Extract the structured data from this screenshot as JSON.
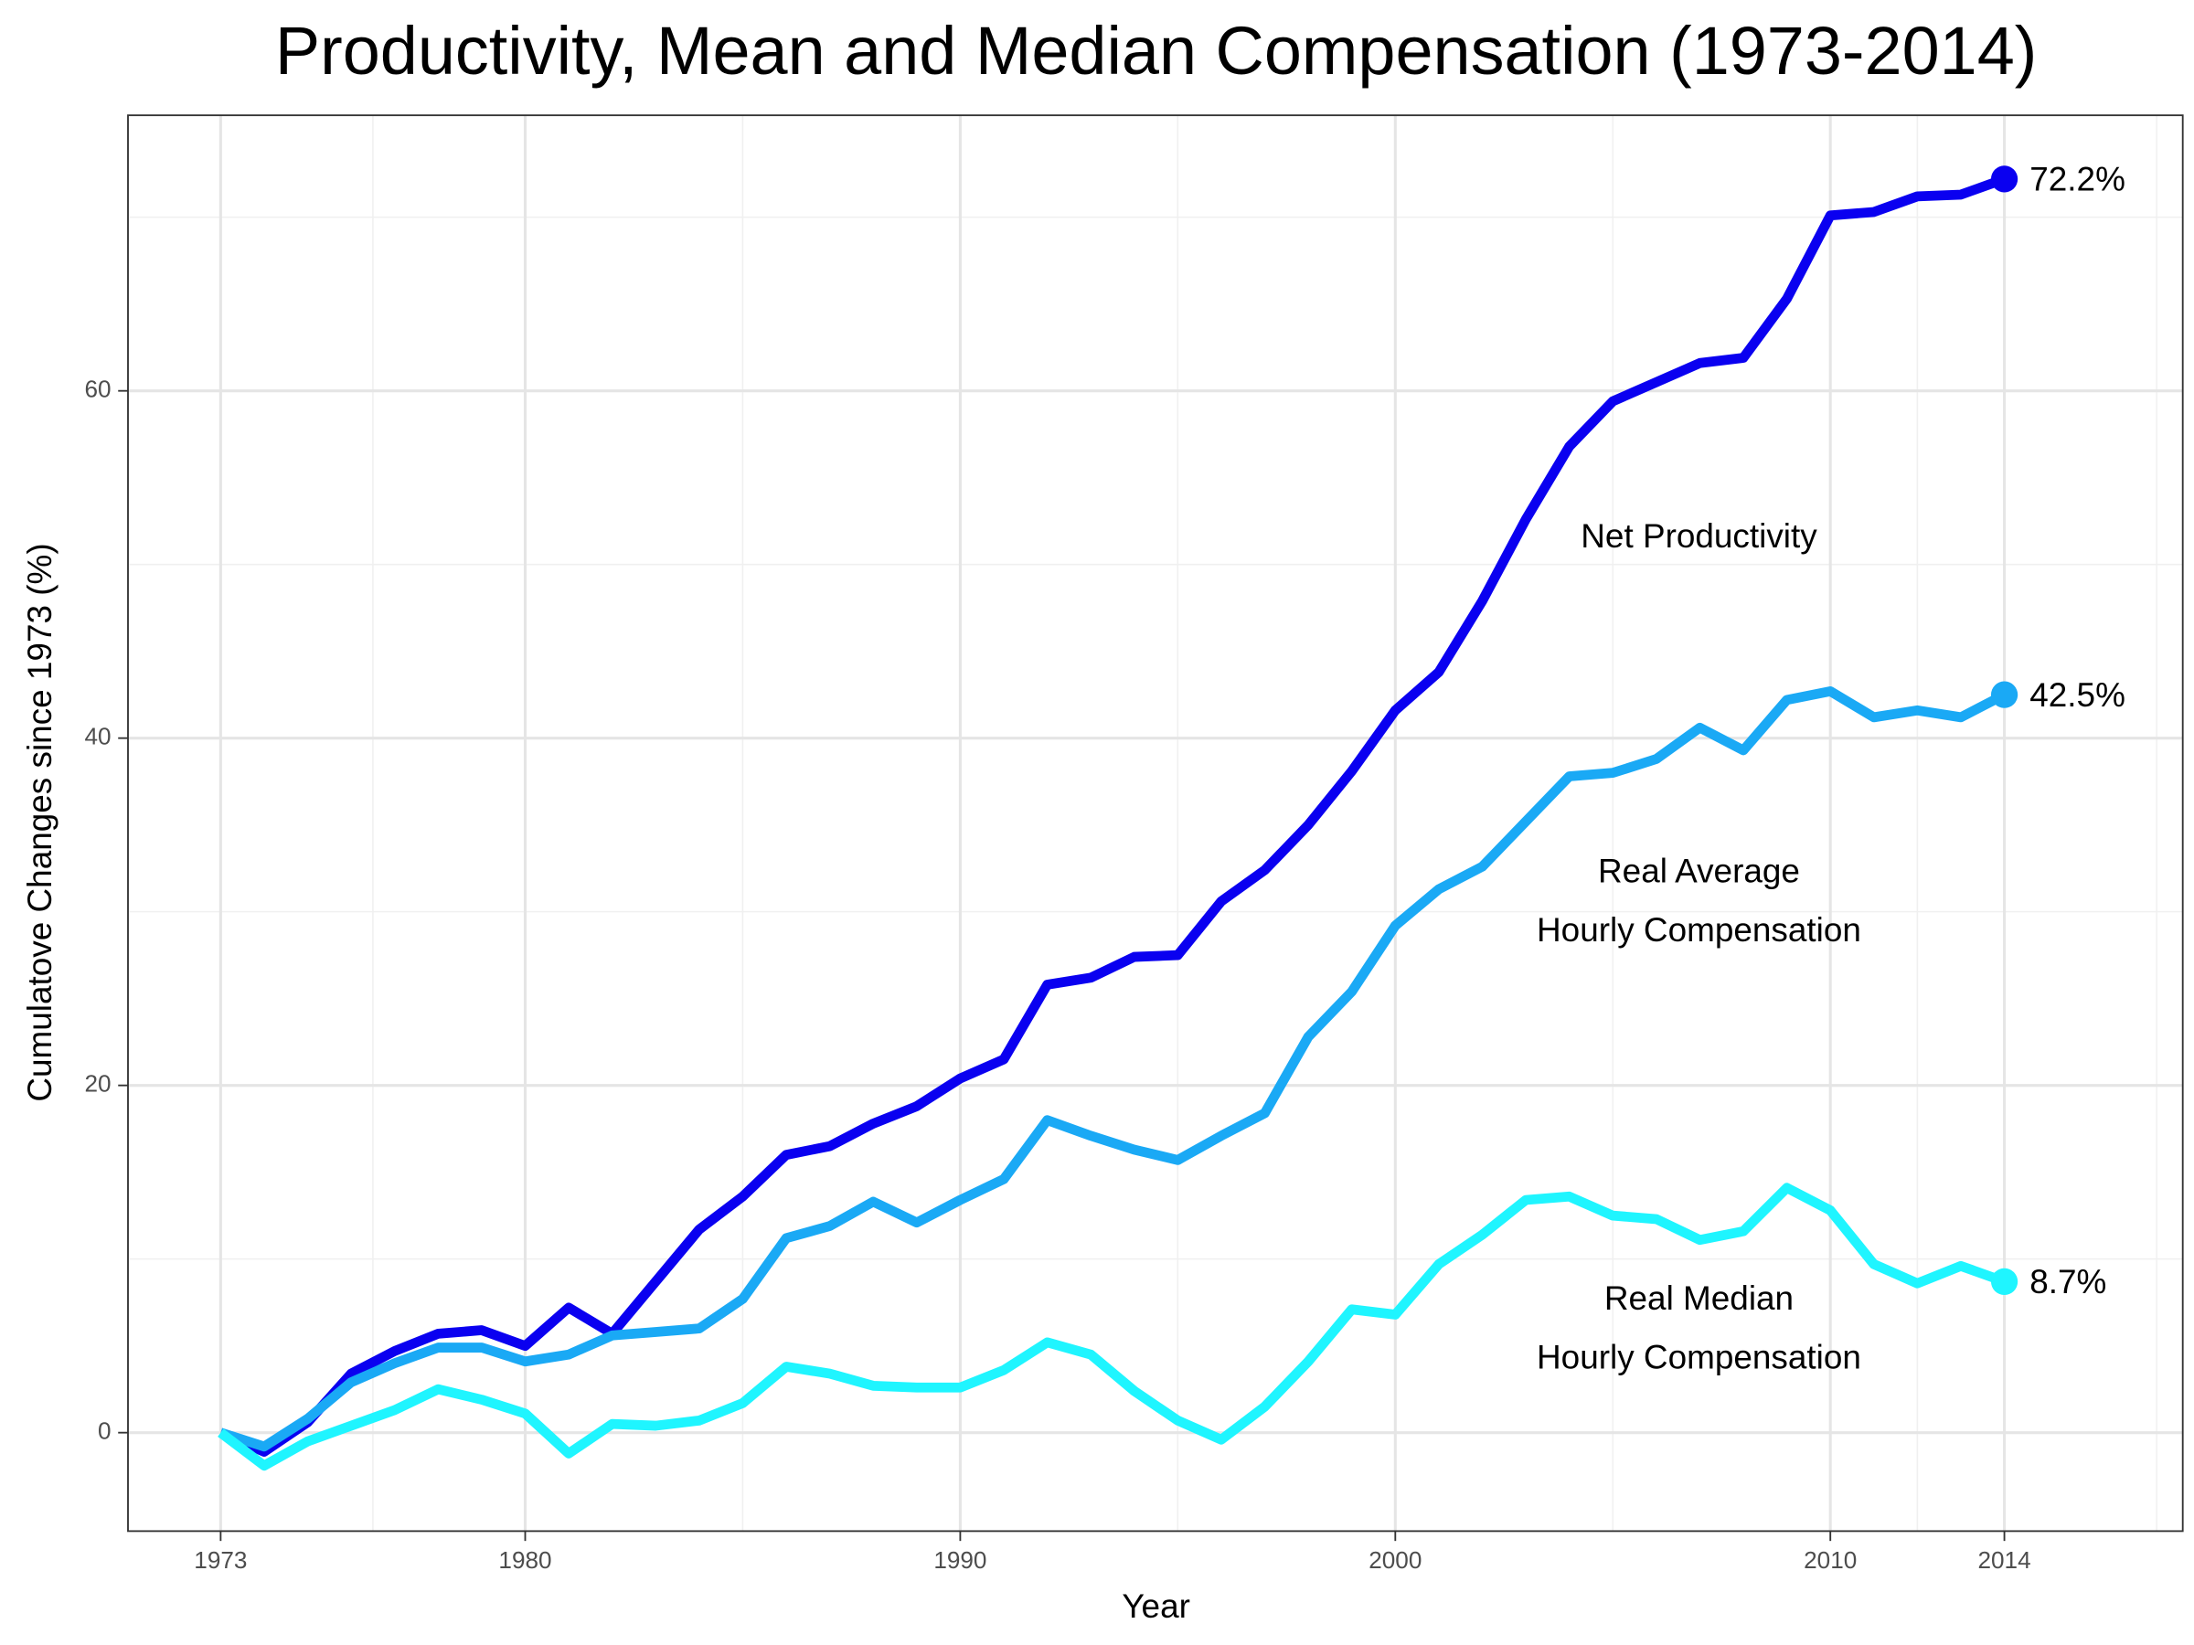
{
  "chart_data": {
    "type": "line",
    "title": "Productivity, Mean and Median Compensation (1973-2014)",
    "x_label": "Year",
    "y_label": "Cumulatove Changes since 1973 (%)",
    "x": [
      1973,
      1974,
      1975,
      1976,
      1977,
      1978,
      1979,
      1980,
      1981,
      1982,
      1983,
      1984,
      1985,
      1986,
      1987,
      1988,
      1989,
      1990,
      1991,
      1992,
      1993,
      1994,
      1995,
      1996,
      1997,
      1998,
      1999,
      2000,
      2001,
      2002,
      2003,
      2004,
      2005,
      2006,
      2007,
      2008,
      2009,
      2010,
      2011,
      2012,
      2013,
      2014
    ],
    "series": [
      {
        "label_lines": [
          "Net Productivity"
        ],
        "color": "#0a00f0",
        "end_label": "72.2%",
        "values": [
          0,
          -1.1,
          0.6,
          3.4,
          4.7,
          5.7,
          5.9,
          5.0,
          7.2,
          5.7,
          8.7,
          11.7,
          13.6,
          16.0,
          16.5,
          17.8,
          18.8,
          20.4,
          21.5,
          25.8,
          26.2,
          27.4,
          27.5,
          30.6,
          32.4,
          35.0,
          38.1,
          41.6,
          43.8,
          47.9,
          52.6,
          56.8,
          59.4,
          60.5,
          61.6,
          61.9,
          65.3,
          70.1,
          70.3,
          71.2,
          71.3,
          72.2
        ]
      },
      {
        "label_lines": [
          "Real Average",
          "Hourly Compensation"
        ],
        "color": "#1aa9f5",
        "end_label": "42.5%",
        "values": [
          0,
          -0.8,
          0.8,
          2.9,
          4.0,
          4.9,
          4.9,
          4.1,
          4.5,
          5.6,
          5.8,
          6.0,
          7.7,
          11.2,
          11.9,
          13.3,
          12.1,
          13.4,
          14.6,
          18.0,
          17.1,
          16.3,
          15.7,
          17.1,
          18.4,
          22.8,
          25.4,
          29.2,
          31.3,
          32.6,
          35.2,
          37.8,
          38.0,
          38.8,
          40.6,
          39.3,
          42.2,
          42.7,
          41.2,
          41.6,
          41.2,
          42.5
        ]
      },
      {
        "label_lines": [
          "Real Median",
          "Hourly Compensation"
        ],
        "color": "#1ff5ff",
        "end_label": "8.7%",
        "values": [
          0,
          -1.9,
          -0.5,
          0.4,
          1.3,
          2.5,
          1.9,
          1.1,
          -1.2,
          0.5,
          0.4,
          0.7,
          1.7,
          3.8,
          3.4,
          2.7,
          2.6,
          2.6,
          3.6,
          5.2,
          4.5,
          2.4,
          0.7,
          -0.4,
          1.5,
          4.1,
          7.1,
          6.8,
          9.7,
          11.4,
          13.4,
          13.6,
          12.5,
          12.3,
          11.1,
          11.6,
          14.1,
          12.8,
          9.7,
          8.6,
          9.6,
          8.7
        ]
      }
    ],
    "xlim": [
      1970.87,
      2018.1
    ],
    "ylim": [
      -5.67,
      75.87
    ],
    "xticks": [
      1973,
      1980,
      1990,
      2000,
      2010,
      2014
    ],
    "yticks": [
      0,
      20,
      40,
      60
    ],
    "x_minor_grid": [
      1976.5,
      1985,
      1995,
      2005,
      2012,
      2017.5
    ],
    "y_minor_grid": [
      10,
      30,
      50,
      70
    ],
    "grid": true
  }
}
